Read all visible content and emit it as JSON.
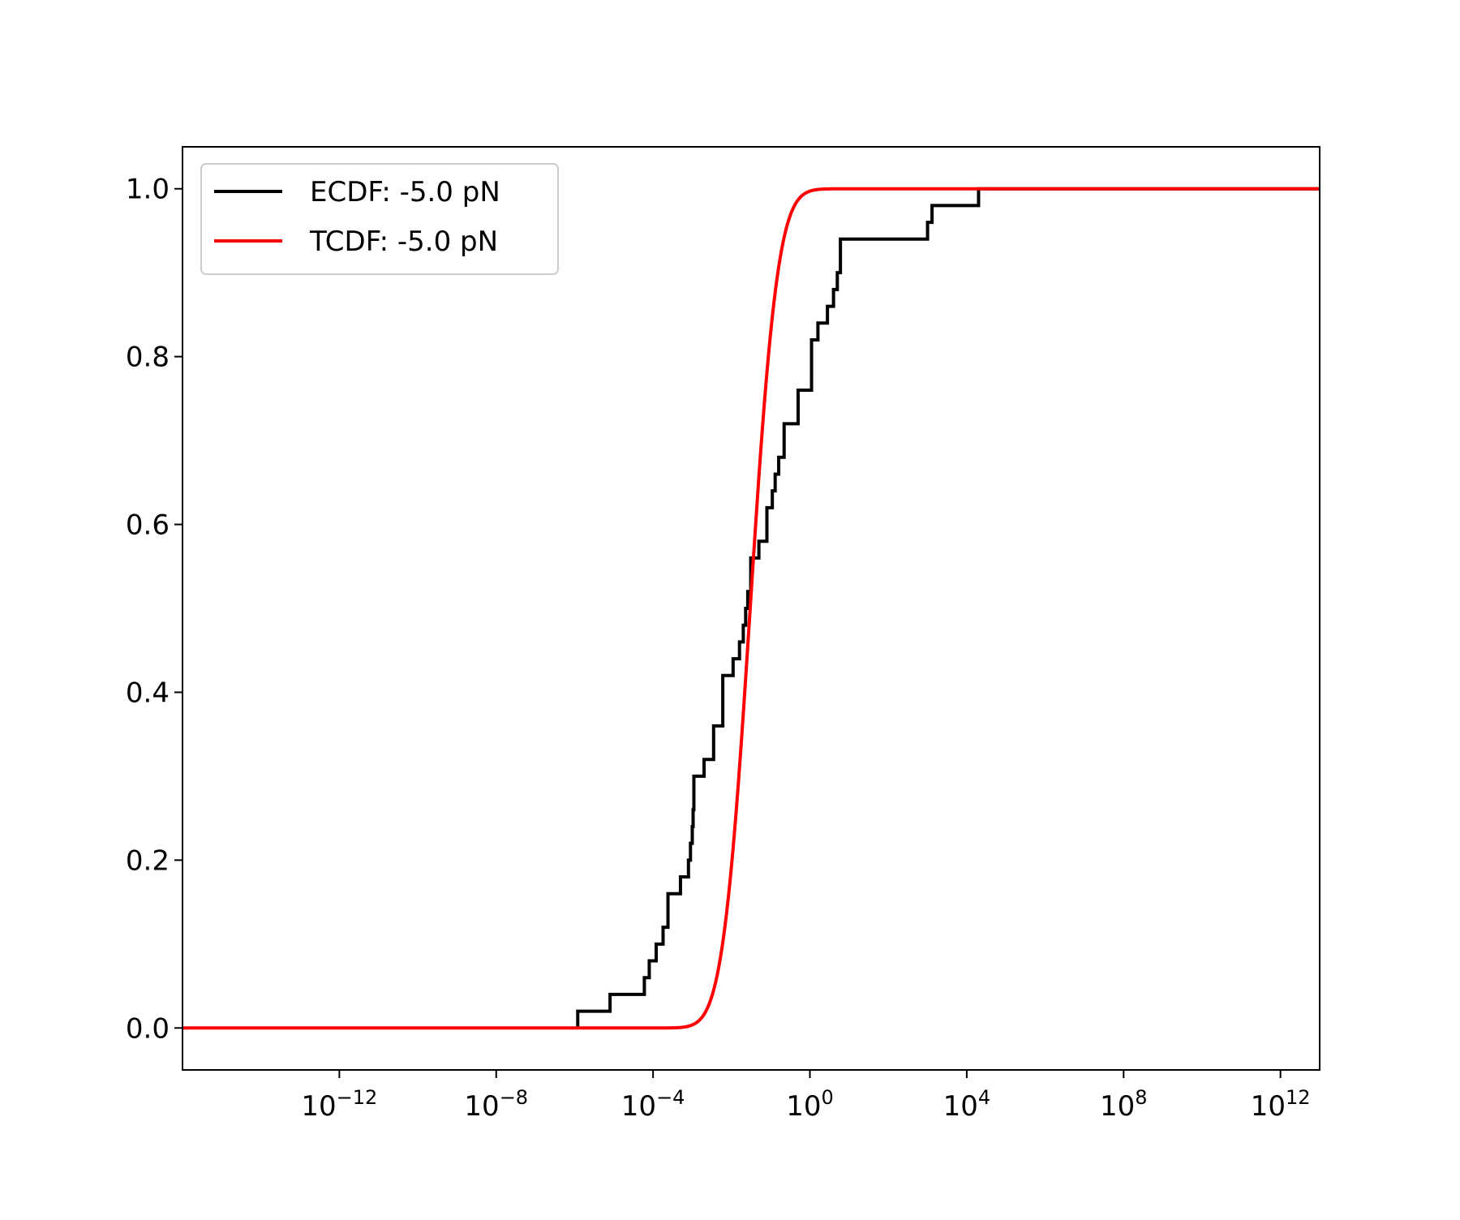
{
  "chart_data": {
    "type": "line",
    "title": "",
    "xlabel": "",
    "ylabel": "",
    "x_scale": "log",
    "xlim": [
      1e-16,
      10000000000000.0
    ],
    "ylim": [
      -0.05,
      1.05
    ],
    "grid": false,
    "legend_position": "top-left",
    "x_ticks": [
      {
        "base": "10",
        "exp": "−12",
        "value": 1e-12
      },
      {
        "base": "10",
        "exp": "−8",
        "value": 1e-08
      },
      {
        "base": "10",
        "exp": "−4",
        "value": 0.0001
      },
      {
        "base": "10",
        "exp": "0",
        "value": 1
      },
      {
        "base": "10",
        "exp": "4",
        "value": 10000.0
      },
      {
        "base": "10",
        "exp": "8",
        "value": 100000000.0
      },
      {
        "base": "10",
        "exp": "12",
        "value": 1000000000000.0
      }
    ],
    "y_ticks": [
      {
        "label": "0.0",
        "value": 0.0
      },
      {
        "label": "0.2",
        "value": 0.2
      },
      {
        "label": "0.4",
        "value": 0.4
      },
      {
        "label": "0.6",
        "value": 0.6
      },
      {
        "label": "0.8",
        "value": 0.8
      },
      {
        "label": "1.0",
        "value": 1.0
      }
    ],
    "series": [
      {
        "name": "ECDF: -5.0 pN",
        "color": "#000000",
        "kind": "step",
        "x": [
          1.2e-06,
          8e-06,
          6e-05,
          8e-05,
          0.00012,
          0.00018,
          0.00024,
          0.0005,
          0.0008,
          0.0009,
          0.001,
          0.00105,
          0.0011,
          0.002,
          0.0035,
          0.006,
          0.011,
          0.016,
          0.02,
          0.023,
          0.026,
          0.031,
          0.05,
          0.08,
          0.11,
          0.13,
          0.16,
          0.22,
          0.5,
          1.1,
          1.6,
          2.8,
          4.0,
          5.0,
          6.0,
          1000.0,
          1300.0,
          20000.0
        ],
        "y": [
          0.02,
          0.04,
          0.06,
          0.08,
          0.1,
          0.12,
          0.16,
          0.18,
          0.2,
          0.22,
          0.24,
          0.26,
          0.3,
          0.32,
          0.36,
          0.42,
          0.44,
          0.46,
          0.48,
          0.5,
          0.52,
          0.56,
          0.58,
          0.62,
          0.64,
          0.66,
          0.68,
          0.72,
          0.76,
          0.82,
          0.84,
          0.86,
          0.88,
          0.9,
          0.94,
          0.96,
          0.98,
          1.0
        ]
      },
      {
        "name": "TCDF: -5.0 pN",
        "color": "#ff0000",
        "kind": "smooth",
        "cdf": "lognormal",
        "median": 0.03,
        "sigma_log10": 0.55
      }
    ]
  }
}
